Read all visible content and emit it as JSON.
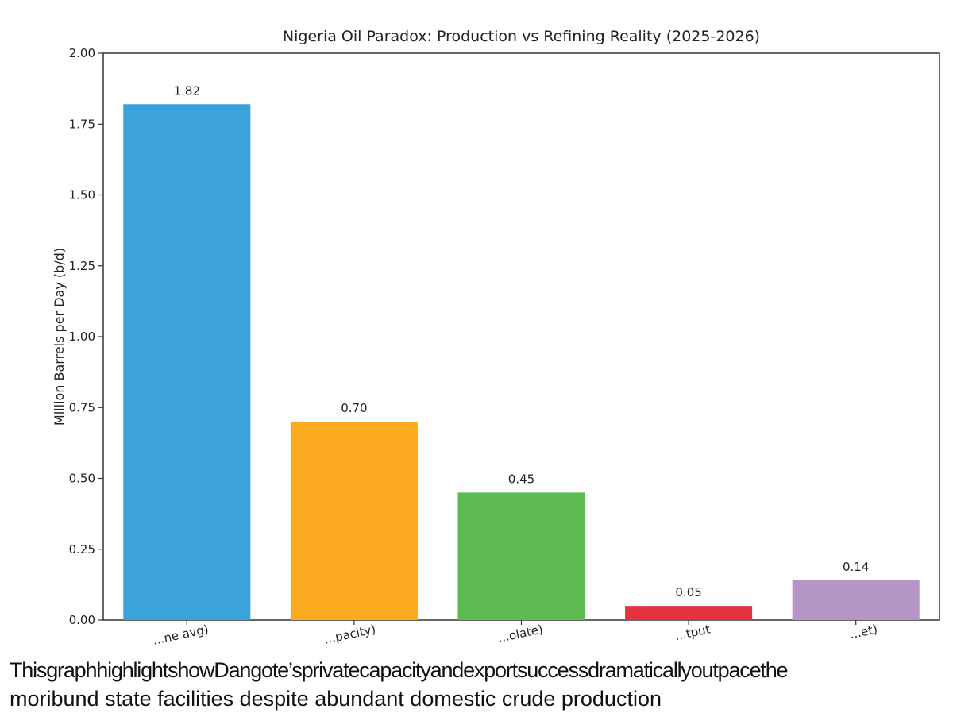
{
  "chart_data": {
    "type": "bar",
    "title": "Nigeria Oil Paradox: Production vs Refining Reality (2025-2026)",
    "xlabel": "",
    "ylabel": "Million Barrels per Day (b/d)",
    "ylim": [
      0,
      2.0
    ],
    "yticks": [
      "0.00",
      "0.25",
      "0.50",
      "0.75",
      "1.00",
      "1.25",
      "1.50",
      "1.75",
      "2.00"
    ],
    "categories": [
      "...ne avg)",
      "...pacity)",
      "...olate)",
      "...tput",
      "...et)"
    ],
    "values": [
      1.82,
      0.7,
      0.45,
      0.05,
      0.14
    ],
    "value_labels": [
      "1.82",
      "0.70",
      "0.45",
      "0.05",
      "0.14"
    ],
    "colors": [
      "#3aa3dc",
      "#f9aa1e",
      "#5cbb51",
      "#e4323f",
      "#b497c7"
    ],
    "grid": false,
    "legend": "none"
  },
  "caption": {
    "line1": "ThisgraphhighlightshowDangote’sprivatecapacityandexportsuccessdramaticallyoutpacethe",
    "line2": "moribund state facilities despite abundant domestic crude production"
  }
}
